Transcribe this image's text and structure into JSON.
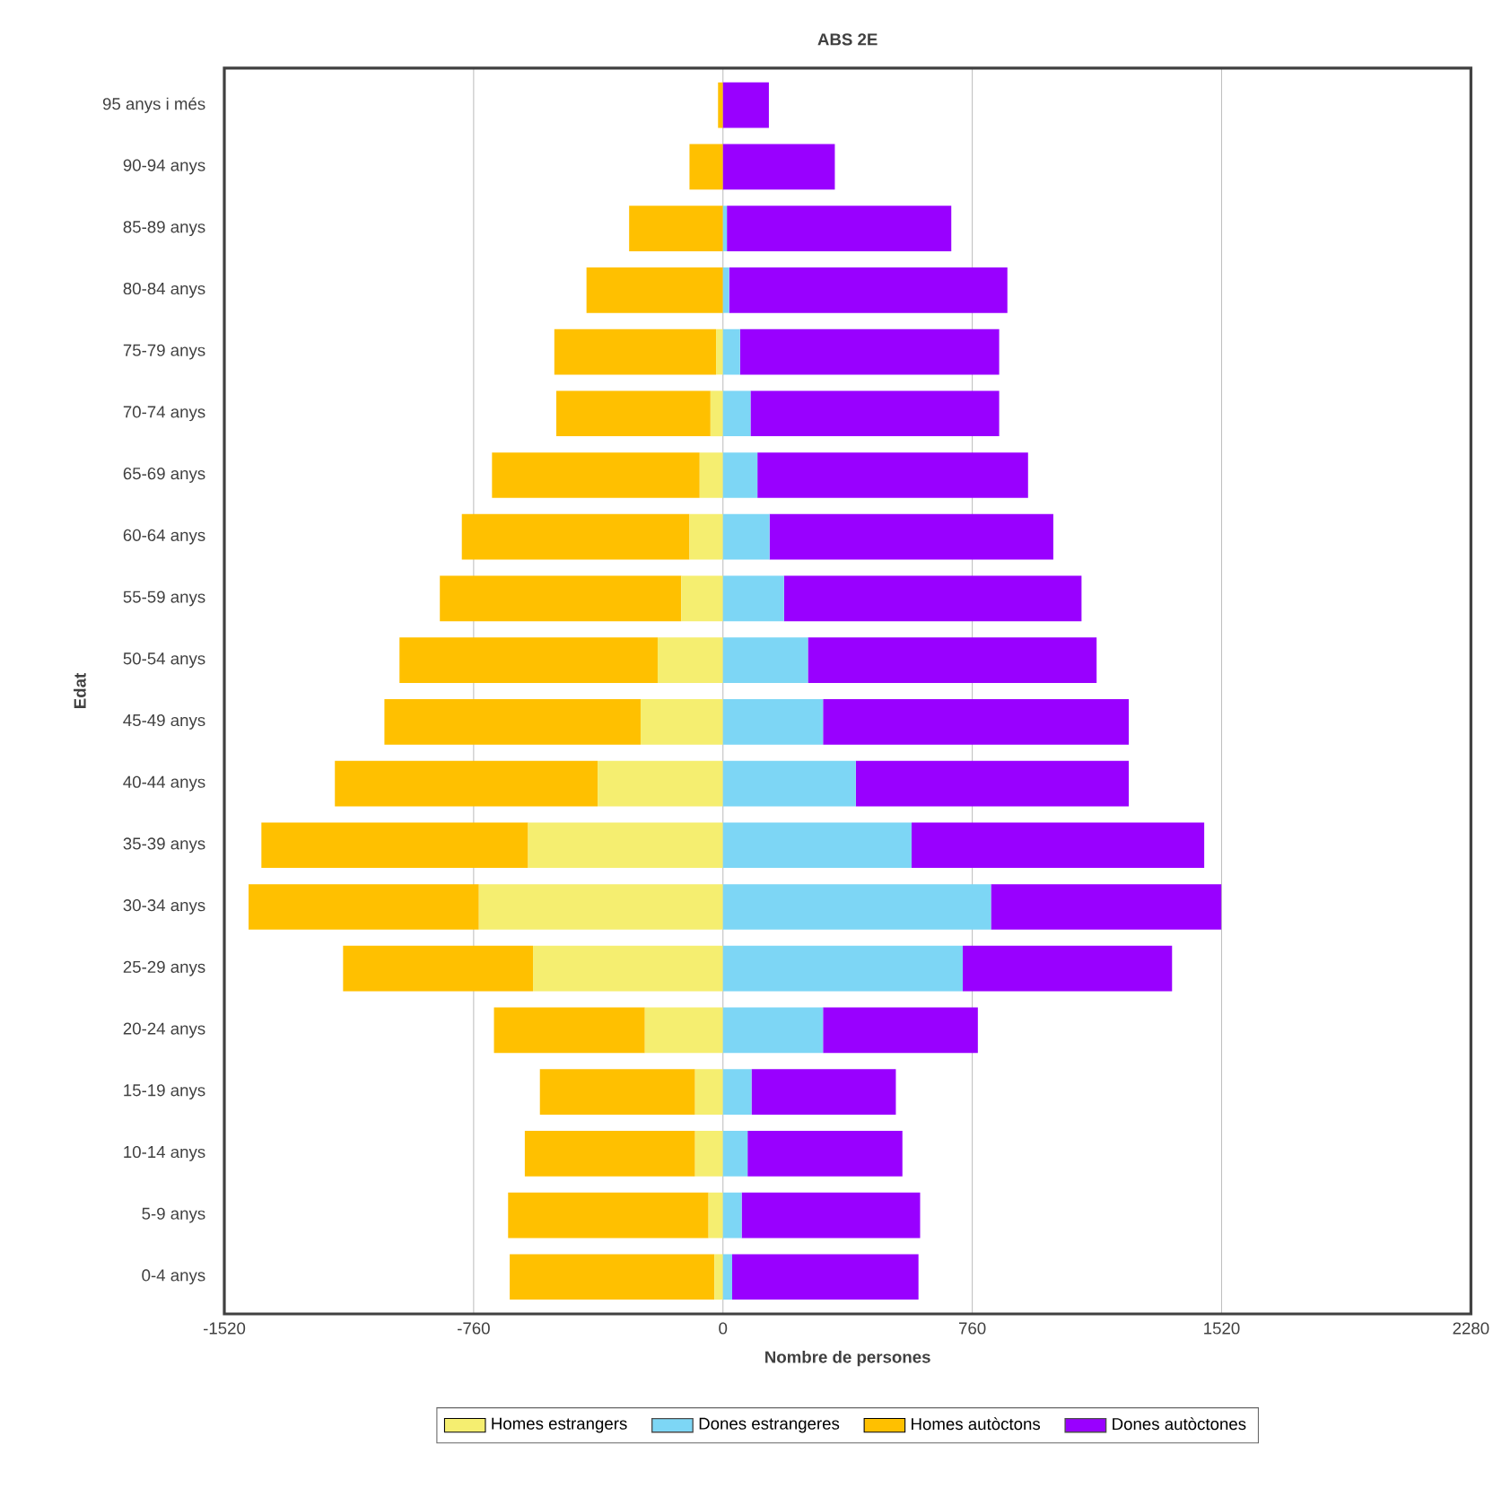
{
  "chart_data": {
    "type": "bar",
    "orientation": "horizontal",
    "stacked": true,
    "title": "ABS 2E",
    "xlabel": "Nombre de persones",
    "ylabel": "Edat",
    "categories": [
      "95 anys i més",
      "90-94 anys",
      "85-89 anys",
      "80-84 anys",
      "75-79 anys",
      "70-74 anys",
      "65-69 anys",
      "60-64 anys",
      "55-59 anys",
      "50-54 anys",
      "45-49 anys",
      "40-44 anys",
      "35-39 anys",
      "30-34 anys",
      "25-29 anys",
      "20-24 anys",
      "15-19 anys",
      "10-14 anys",
      "5-9 anys",
      "0-4 anys"
    ],
    "series": [
      {
        "name": "Homes estrangers",
        "color": "#f5ee70",
        "values": [
          0,
          0,
          0,
          0,
          -21,
          -38,
          -71,
          -102,
          -127,
          -199,
          -251,
          -382,
          -594,
          -744,
          -579,
          -238,
          -85,
          -85,
          -44,
          -26
        ]
      },
      {
        "name": "Dones estrangeres",
        "color": "#7dd6f5",
        "values": [
          0,
          0,
          12,
          19,
          52,
          84,
          105,
          142,
          186,
          259,
          305,
          405,
          575,
          817,
          731,
          305,
          87,
          75,
          57,
          28
        ]
      },
      {
        "name": "Homes autòctons",
        "color": "#ffc000",
        "values": [
          -15,
          -102,
          -286,
          -416,
          -493,
          -470,
          -633,
          -694,
          -736,
          -787,
          -781,
          -801,
          -813,
          -702,
          -579,
          -460,
          -473,
          -519,
          -611,
          -624
        ]
      },
      {
        "name": "Dones autòctones",
        "color": "#9900ff",
        "values": [
          140,
          341,
          684,
          848,
          790,
          758,
          825,
          865,
          907,
          880,
          932,
          832,
          892,
          702,
          638,
          472,
          440,
          472,
          544,
          568
        ]
      }
    ],
    "xlim": [
      -1520,
      2280
    ],
    "xticks": [
      -1520,
      -760,
      0,
      760,
      1520,
      2280
    ],
    "grid": "x",
    "legend": "bottom"
  }
}
